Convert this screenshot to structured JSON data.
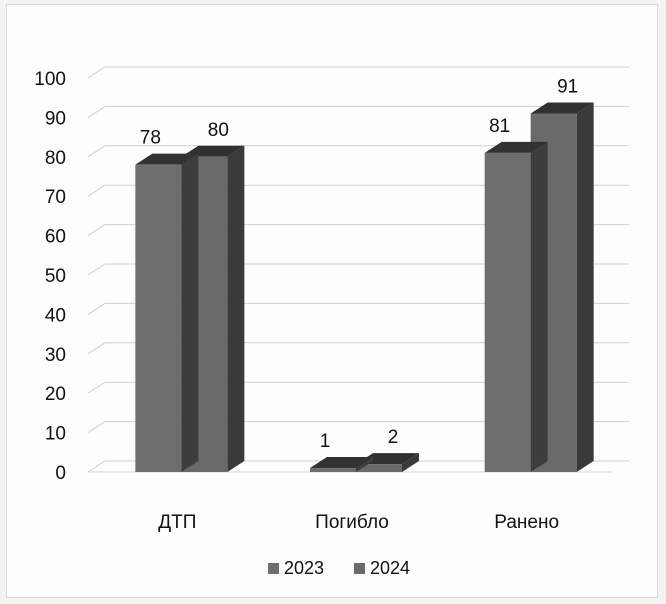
{
  "chart_data": {
    "type": "bar",
    "categories": [
      "ДТП",
      "Погибло",
      "Ранено"
    ],
    "series": [
      {
        "name": "2023",
        "values": [
          78,
          1,
          81
        ],
        "color": "#6e6e6e"
      },
      {
        "name": "2024",
        "values": [
          80,
          2,
          91
        ],
        "color": "#6a6a6a"
      }
    ],
    "ylim": [
      0,
      100
    ],
    "yticks": [
      0,
      10,
      20,
      30,
      40,
      50,
      60,
      70,
      80,
      90,
      100
    ],
    "grid": true,
    "style": "3d",
    "legend_position": "bottom"
  }
}
